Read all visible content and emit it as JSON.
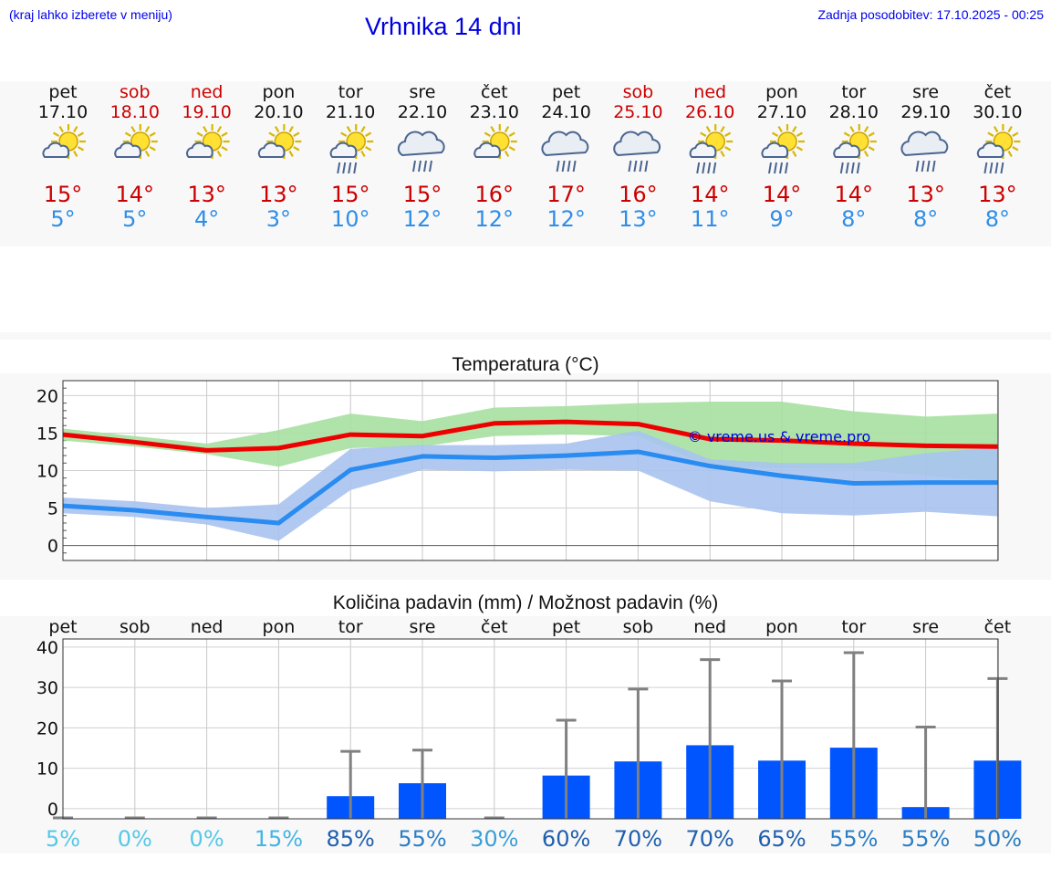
{
  "header": {
    "menu_hint": "(kraj lahko izberete v meniju)",
    "title": "Vrhnika 14 dni",
    "last_update": "Zadnja posodobitev: 17.10.2025 - 00:25"
  },
  "colors": {
    "weekday": "#111111",
    "weekend": "#cc0000",
    "tmax": "#cc0000",
    "tmin": "#2f8ee8",
    "tmax_line": "#ee0000",
    "tmin_line": "#2a8cf0",
    "tmax_band": "#a6e0a0",
    "tmin_band": "#a9c3ef",
    "precip_bar": "#0055ff",
    "error_bar": "#808080"
  },
  "days": [
    {
      "day": "pet",
      "date": "17.10",
      "weekend": false,
      "icon": "sun-cloud-icon",
      "tmax": "15°",
      "tmin": "5°",
      "prob": "5%"
    },
    {
      "day": "sob",
      "date": "18.10",
      "weekend": true,
      "icon": "sun-cloud-icon",
      "tmax": "14°",
      "tmin": "5°",
      "prob": "0%"
    },
    {
      "day": "ned",
      "date": "19.10",
      "weekend": true,
      "icon": "sun-cloud-icon",
      "tmax": "13°",
      "tmin": "4°",
      "prob": "0%"
    },
    {
      "day": "pon",
      "date": "20.10",
      "weekend": false,
      "icon": "sun-cloud-icon",
      "tmax": "13°",
      "tmin": "3°",
      "prob": "15%"
    },
    {
      "day": "tor",
      "date": "21.10",
      "weekend": false,
      "icon": "sun-cloud-rain-icon",
      "tmax": "15°",
      "tmin": "10°",
      "prob": "85%"
    },
    {
      "day": "sre",
      "date": "22.10",
      "weekend": false,
      "icon": "cloud-rain-icon",
      "tmax": "15°",
      "tmin": "12°",
      "prob": "55%"
    },
    {
      "day": "čet",
      "date": "23.10",
      "weekend": false,
      "icon": "sun-cloud-icon",
      "tmax": "16°",
      "tmin": "12°",
      "prob": "30%"
    },
    {
      "day": "pet",
      "date": "24.10",
      "weekend": false,
      "icon": "cloud-rain-icon",
      "tmax": "17°",
      "tmin": "12°",
      "prob": "60%"
    },
    {
      "day": "sob",
      "date": "25.10",
      "weekend": true,
      "icon": "cloud-rain-icon",
      "tmax": "16°",
      "tmin": "13°",
      "prob": "70%"
    },
    {
      "day": "ned",
      "date": "26.10",
      "weekend": true,
      "icon": "sun-cloud-rain-icon",
      "tmax": "14°",
      "tmin": "11°",
      "prob": "70%"
    },
    {
      "day": "pon",
      "date": "27.10",
      "weekend": false,
      "icon": "sun-cloud-rain-icon",
      "tmax": "14°",
      "tmin": "9°",
      "prob": "65%"
    },
    {
      "day": "tor",
      "date": "28.10",
      "weekend": false,
      "icon": "sun-cloud-rain-icon",
      "tmax": "14°",
      "tmin": "8°",
      "prob": "55%"
    },
    {
      "day": "sre",
      "date": "29.10",
      "weekend": false,
      "icon": "cloud-rain-icon",
      "tmax": "13°",
      "tmin": "8°",
      "prob": "55%"
    },
    {
      "day": "čet",
      "date": "30.10",
      "weekend": false,
      "icon": "sun-cloud-rain-icon",
      "tmax": "13°",
      "tmin": "8°",
      "prob": "50%"
    }
  ],
  "chart_data": [
    {
      "type": "line",
      "title": "Temperatura (°C)",
      "watermark": "© vreme.us & vreme.pro",
      "x": [
        0,
        1,
        2,
        3,
        4,
        5,
        6,
        7,
        8,
        9,
        10,
        11,
        12,
        13
      ],
      "ylim": [
        -2,
        22
      ],
      "yticks": [
        0,
        5,
        10,
        15,
        20
      ],
      "grid": true,
      "series": [
        {
          "values": [
            14.8,
            13.8,
            12.7,
            13.0,
            14.8,
            14.6,
            16.3,
            16.5,
            16.2,
            14.2,
            14.0,
            13.6,
            13.3,
            13.2
          ],
          "low": [
            14.0,
            13.2,
            12.2,
            10.5,
            13.0,
            13.2,
            14.6,
            14.8,
            14.6,
            10.5,
            10.3,
            10.2,
            9.3,
            8.5
          ],
          "high": [
            15.6,
            14.6,
            13.6,
            15.4,
            17.6,
            16.6,
            18.4,
            18.6,
            19.0,
            19.2,
            19.2,
            17.9,
            17.2,
            17.6
          ]
        },
        {
          "values": [
            5.3,
            4.7,
            3.8,
            3.0,
            10.1,
            11.9,
            11.7,
            12.0,
            12.5,
            10.6,
            9.3,
            8.3,
            8.4,
            8.4
          ],
          "low": [
            4.3,
            3.8,
            2.8,
            0.6,
            7.4,
            10.1,
            9.9,
            10.1,
            10.0,
            5.9,
            4.3,
            4.0,
            4.5,
            3.9
          ],
          "high": [
            6.4,
            5.9,
            5.0,
            5.5,
            12.9,
            13.4,
            13.4,
            13.6,
            15.3,
            11.5,
            11.0,
            11.0,
            12.3,
            13.1
          ]
        }
      ]
    },
    {
      "type": "bar",
      "title": "Količina padavin (mm) / Možnost padavin (%)",
      "categories": [
        "pet",
        "sob",
        "ned",
        "pon",
        "tor",
        "sre",
        "čet",
        "pet",
        "sob",
        "ned",
        "pon",
        "tor",
        "sre",
        "čet"
      ],
      "values": [
        0,
        0,
        0,
        0,
        3.1,
        6.3,
        0,
        8.2,
        11.7,
        15.7,
        11.9,
        15.1,
        0.4,
        11.9
      ],
      "error_high": [
        0,
        0.2,
        0.2,
        0.2,
        14.2,
        14.5,
        0.2,
        21.9,
        29.6,
        36.9,
        31.6,
        38.6,
        20.2,
        32.2
      ],
      "precip_probability": [
        5,
        0,
        0,
        15,
        85,
        55,
        30,
        60,
        70,
        70,
        65,
        55,
        55,
        50
      ],
      "ylim": [
        -2.5,
        42
      ],
      "yticks": [
        0,
        10,
        20,
        30,
        40
      ],
      "grid": true
    }
  ]
}
